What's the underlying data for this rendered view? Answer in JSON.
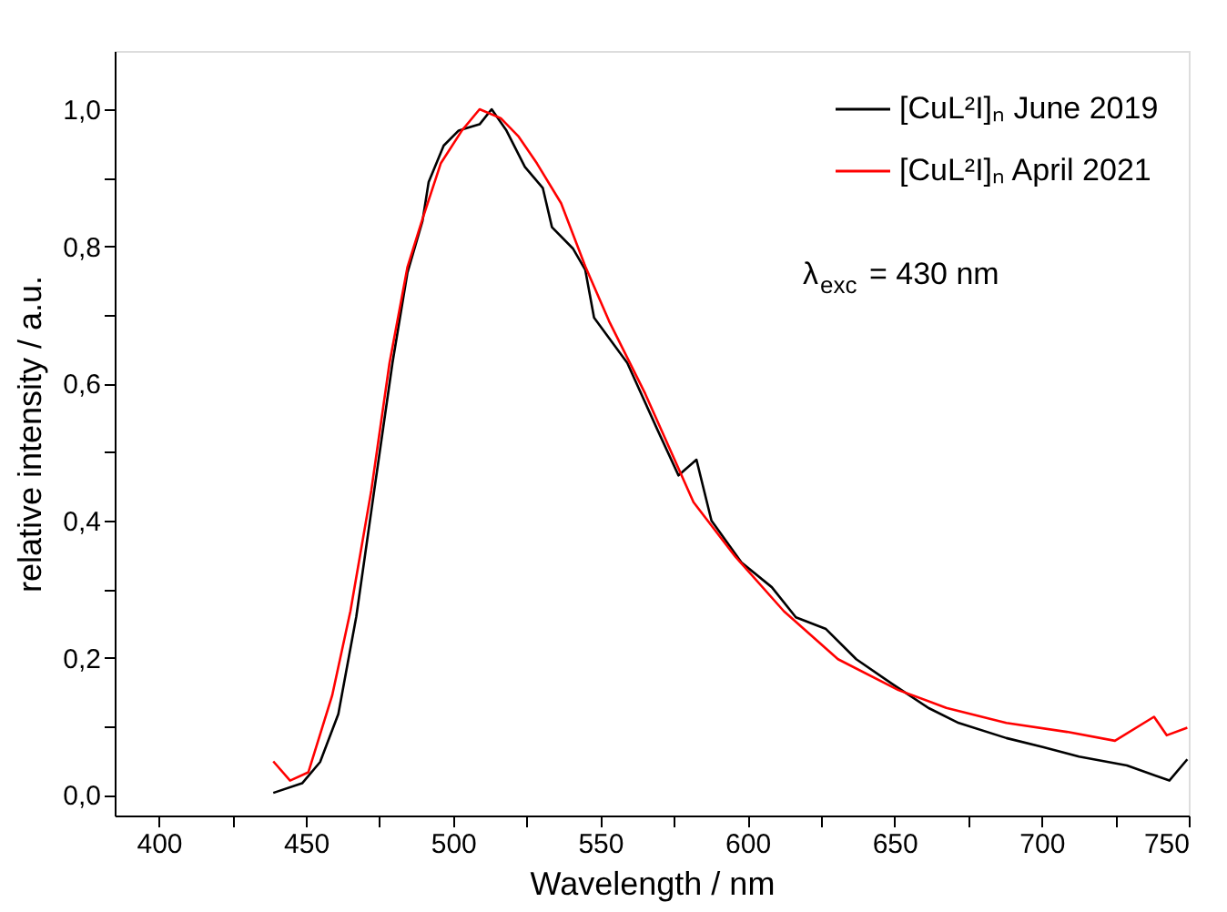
{
  "chart_data": {
    "type": "line",
    "xlabel": "Wavelength / nm",
    "ylabel": "relative intensity / a.u.",
    "xlim": [
      385,
      750
    ],
    "ylim": [
      -0.03,
      1.085
    ],
    "xticks": [
      400,
      {
        "value": 425,
        "label": null
      },
      450,
      {
        "value": 475,
        "label": null
      },
      500,
      {
        "value": 525,
        "label": null
      },
      550,
      {
        "value": 575,
        "label": null
      },
      600,
      {
        "value": 625,
        "label": null
      },
      650,
      {
        "value": 675,
        "label": null
      },
      700,
      {
        "value": 725,
        "label": null
      },
      750
    ],
    "yticks": [
      {
        "value": 0,
        "label": "0,0"
      },
      {
        "value": 0.1,
        "label": null
      },
      {
        "value": 0.2,
        "label": "0,2"
      },
      {
        "value": 0.3,
        "label": null
      },
      {
        "value": 0.4,
        "label": "0,4"
      },
      {
        "value": 0.5,
        "label": null
      },
      {
        "value": 0.6,
        "label": "0,6"
      },
      {
        "value": 0.7,
        "label": null
      },
      {
        "value": 0.8,
        "label": "0,8"
      },
      {
        "value": 0.9,
        "label": null
      },
      {
        "value": 1.0,
        "label": "1,0"
      }
    ],
    "legend": "top right",
    "grid": false,
    "marker": "none",
    "line_style": "solid",
    "annotations": [
      "λ$_{exc}$ = 430 nm"
    ],
    "series": [
      {
        "name": "[CuL²I]ₙ June 2019",
        "color": "#000000",
        "x": [
          438.9,
          448.7,
          454.8,
          461,
          467.1,
          473.2,
          479.4,
          484.5,
          489.6,
          491.7,
          496.8,
          501.9,
          509,
          513.1,
          518,
          524.4,
          530.5,
          533.6,
          540.7,
          544.9,
          547.9,
          559.2,
          569.4,
          576.6,
          582.7,
          587.8,
          598,
          608.3,
          616.5,
          626.7,
          637,
          649.2,
          661.5,
          671.8,
          688,
          700.4,
          712.7,
          729,
          743.4,
          749.5
        ],
        "values": [
          0.003,
          0.017,
          0.048,
          0.118,
          0.26,
          0.444,
          0.63,
          0.762,
          0.837,
          0.894,
          0.947,
          0.969,
          0.978,
          1.0,
          0.97,
          0.916,
          0.885,
          0.828,
          0.797,
          0.766,
          0.696,
          0.63,
          0.533,
          0.466,
          0.489,
          0.4,
          0.339,
          0.303,
          0.259,
          0.242,
          0.198,
          0.162,
          0.127,
          0.105,
          0.083,
          0.07,
          0.056,
          0.043,
          0.021,
          0.052
        ]
      },
      {
        "name": "[CuL²I]ₙ April 2021",
        "color": "#ff0000",
        "x": [
          438.9,
          444.6,
          450.8,
          458.9,
          465.1,
          472.2,
          478.4,
          484.5,
          489.6,
          495.8,
          503,
          509,
          516.2,
          522.3,
          528.5,
          536.7,
          544.9,
          553,
          565.3,
          581.7,
          596,
          612.4,
          630.8,
          651.3,
          667.6,
          688,
          708.6,
          724.9,
          738.2,
          742.5,
          749.5
        ],
        "values": [
          0.049,
          0.021,
          0.033,
          0.145,
          0.268,
          0.444,
          0.63,
          0.77,
          0.84,
          0.921,
          0.969,
          1.0,
          0.987,
          0.96,
          0.921,
          0.863,
          0.771,
          0.691,
          0.585,
          0.427,
          0.347,
          0.268,
          0.198,
          0.153,
          0.127,
          0.105,
          0.092,
          0.079,
          0.114,
          0.087,
          0.098
        ]
      }
    ]
  }
}
